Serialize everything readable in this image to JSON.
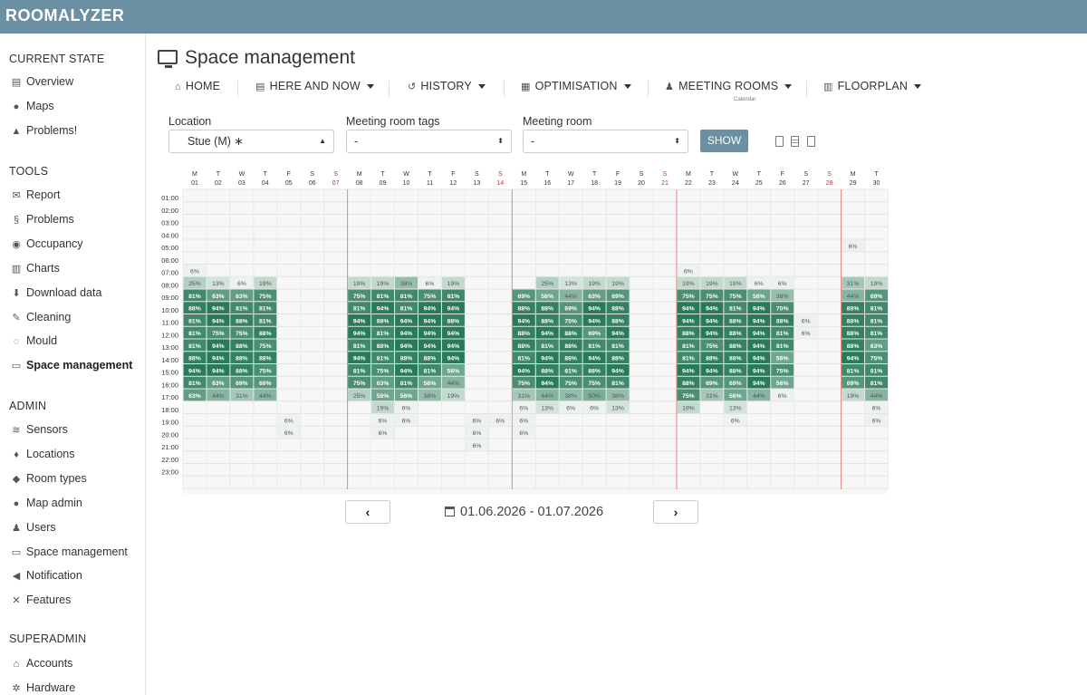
{
  "app": {
    "logo": "ROOMALYZER"
  },
  "sidebar": {
    "sections": [
      {
        "title": "CURRENT STATE",
        "items": [
          {
            "label": "Overview",
            "icon": "table-icon"
          },
          {
            "label": "Maps",
            "icon": "globe-icon"
          },
          {
            "label": "Problems!",
            "icon": "warning-icon"
          }
        ]
      },
      {
        "title": "TOOLS",
        "items": [
          {
            "label": "Report",
            "icon": "envelope-icon"
          },
          {
            "label": "Problems",
            "icon": "stethoscope-icon"
          },
          {
            "label": "Occupancy",
            "icon": "user-circle-icon"
          },
          {
            "label": "Charts",
            "icon": "bar-chart-icon"
          },
          {
            "label": "Download data",
            "icon": "download-icon"
          },
          {
            "label": "Cleaning",
            "icon": "brush-icon"
          },
          {
            "label": "Mould",
            "icon": "spinner-icon"
          },
          {
            "label": "Space management",
            "icon": "monitor-icon",
            "active": true
          }
        ]
      },
      {
        "title": "ADMIN",
        "items": [
          {
            "label": "Sensors",
            "icon": "rss-icon"
          },
          {
            "label": "Locations",
            "icon": "map-marker-icon"
          },
          {
            "label": "Room types",
            "icon": "tag-icon"
          },
          {
            "label": "Map admin",
            "icon": "globe-icon"
          },
          {
            "label": "Users",
            "icon": "users-icon"
          },
          {
            "label": "Space management",
            "icon": "monitor-icon"
          },
          {
            "label": "Notification",
            "icon": "bullhorn-icon"
          },
          {
            "label": "Features",
            "icon": "wrench-icon"
          }
        ]
      },
      {
        "title": "SUPERADMIN",
        "items": [
          {
            "label": "Accounts",
            "icon": "bank-icon"
          },
          {
            "label": "Hardware",
            "icon": "cogs-icon"
          }
        ]
      }
    ]
  },
  "page": {
    "title": "Space management",
    "title_icon": "monitor-icon"
  },
  "navbar": {
    "home": "HOME",
    "here_and_now": "HERE AND NOW",
    "history": "HISTORY",
    "optimisation": "OPTIMISATION",
    "meeting_rooms": "MEETING ROOMS",
    "meeting_rooms_sub": "Calendar",
    "floorplan": "FLOORPLAN"
  },
  "filters": {
    "location_label": "Location",
    "location_value": "Stue (M) ∗",
    "tags_label": "Meeting room tags",
    "tags_value": "-",
    "room_label": "Meeting room",
    "room_value": "-",
    "show_button": "SHOW"
  },
  "date_range": "01.06.2026 - 01.07.2026",
  "colors": {
    "header": "#6b8fa3",
    "weekend_day": "#d9262b",
    "heat_dark": "#2f7d5d",
    "heat_light": "#e9f0ec"
  },
  "chart_data": {
    "type": "heatmap",
    "days": [
      {
        "wd": "M",
        "d": "01"
      },
      {
        "wd": "T",
        "d": "02"
      },
      {
        "wd": "W",
        "d": "03"
      },
      {
        "wd": "T",
        "d": "04"
      },
      {
        "wd": "F",
        "d": "05"
      },
      {
        "wd": "S",
        "d": "06"
      },
      {
        "wd": "S",
        "d": "07",
        "sun": true
      },
      {
        "wd": "M",
        "d": "08"
      },
      {
        "wd": "T",
        "d": "09"
      },
      {
        "wd": "W",
        "d": "10"
      },
      {
        "wd": "T",
        "d": "11"
      },
      {
        "wd": "F",
        "d": "12"
      },
      {
        "wd": "S",
        "d": "13"
      },
      {
        "wd": "S",
        "d": "14",
        "sun": true
      },
      {
        "wd": "M",
        "d": "15"
      },
      {
        "wd": "T",
        "d": "16"
      },
      {
        "wd": "W",
        "d": "17"
      },
      {
        "wd": "T",
        "d": "18"
      },
      {
        "wd": "F",
        "d": "19"
      },
      {
        "wd": "S",
        "d": "20"
      },
      {
        "wd": "S",
        "d": "21",
        "sun": true
      },
      {
        "wd": "M",
        "d": "22"
      },
      {
        "wd": "T",
        "d": "23"
      },
      {
        "wd": "W",
        "d": "24"
      },
      {
        "wd": "T",
        "d": "25"
      },
      {
        "wd": "F",
        "d": "26"
      },
      {
        "wd": "S",
        "d": "27"
      },
      {
        "wd": "S",
        "d": "28",
        "sun": true
      },
      {
        "wd": "M",
        "d": "29"
      },
      {
        "wd": "T",
        "d": "30"
      }
    ],
    "hours": [
      "01:00",
      "02:00",
      "03:00",
      "04:00",
      "05:00",
      "06:00",
      "07:00",
      "08:00",
      "09:00",
      "10:00",
      "11:00",
      "12:00",
      "13:00",
      "14:00",
      "15:00",
      "16:00",
      "17:00",
      "18:00",
      "19:00",
      "20:00",
      "21:00",
      "22:00",
      "23:00"
    ],
    "cells": [
      [
        5,
        29,
        6
      ],
      [
        7,
        1,
        6
      ],
      [
        7,
        22,
        6
      ],
      [
        8,
        1,
        25
      ],
      [
        8,
        2,
        13
      ],
      [
        8,
        3,
        6
      ],
      [
        8,
        4,
        19
      ],
      [
        8,
        8,
        19
      ],
      [
        8,
        9,
        19
      ],
      [
        8,
        10,
        38
      ],
      [
        8,
        11,
        6
      ],
      [
        8,
        12,
        19
      ],
      [
        8,
        16,
        25
      ],
      [
        8,
        17,
        13
      ],
      [
        8,
        18,
        19
      ],
      [
        8,
        19,
        19
      ],
      [
        8,
        22,
        19
      ],
      [
        8,
        23,
        19
      ],
      [
        8,
        24,
        19
      ],
      [
        8,
        25,
        6
      ],
      [
        8,
        26,
        6
      ],
      [
        8,
        29,
        31
      ],
      [
        8,
        30,
        19
      ],
      [
        9,
        1,
        81
      ],
      [
        9,
        2,
        63
      ],
      [
        9,
        3,
        63
      ],
      [
        9,
        4,
        75
      ],
      [
        9,
        8,
        75
      ],
      [
        9,
        9,
        81
      ],
      [
        9,
        10,
        81
      ],
      [
        9,
        11,
        75
      ],
      [
        9,
        12,
        81
      ],
      [
        9,
        15,
        69
      ],
      [
        9,
        16,
        56
      ],
      [
        9,
        17,
        44
      ],
      [
        9,
        18,
        63
      ],
      [
        9,
        19,
        69
      ],
      [
        9,
        22,
        75
      ],
      [
        9,
        23,
        75
      ],
      [
        9,
        24,
        75
      ],
      [
        9,
        25,
        56
      ],
      [
        9,
        26,
        38
      ],
      [
        9,
        29,
        44
      ],
      [
        9,
        30,
        69
      ],
      [
        10,
        1,
        88
      ],
      [
        10,
        2,
        94
      ],
      [
        10,
        3,
        81
      ],
      [
        10,
        4,
        81
      ],
      [
        10,
        8,
        81
      ],
      [
        10,
        9,
        94
      ],
      [
        10,
        10,
        81
      ],
      [
        10,
        11,
        94
      ],
      [
        10,
        12,
        94
      ],
      [
        10,
        15,
        88
      ],
      [
        10,
        16,
        88
      ],
      [
        10,
        17,
        69
      ],
      [
        10,
        18,
        94
      ],
      [
        10,
        19,
        88
      ],
      [
        10,
        22,
        94
      ],
      [
        10,
        23,
        94
      ],
      [
        10,
        24,
        81
      ],
      [
        10,
        25,
        94
      ],
      [
        10,
        26,
        75
      ],
      [
        10,
        29,
        88
      ],
      [
        10,
        30,
        81
      ],
      [
        11,
        1,
        81
      ],
      [
        11,
        2,
        94
      ],
      [
        11,
        3,
        88
      ],
      [
        11,
        4,
        81
      ],
      [
        11,
        8,
        94
      ],
      [
        11,
        9,
        88
      ],
      [
        11,
        10,
        94
      ],
      [
        11,
        11,
        94
      ],
      [
        11,
        12,
        88
      ],
      [
        11,
        15,
        94
      ],
      [
        11,
        16,
        88
      ],
      [
        11,
        17,
        75
      ],
      [
        11,
        18,
        94
      ],
      [
        11,
        19,
        88
      ],
      [
        11,
        22,
        94
      ],
      [
        11,
        23,
        94
      ],
      [
        11,
        24,
        88
      ],
      [
        11,
        25,
        94
      ],
      [
        11,
        26,
        88
      ],
      [
        11,
        27,
        6
      ],
      [
        11,
        29,
        88
      ],
      [
        11,
        30,
        81
      ],
      [
        12,
        1,
        81
      ],
      [
        12,
        2,
        75
      ],
      [
        12,
        3,
        75
      ],
      [
        12,
        4,
        88
      ],
      [
        12,
        8,
        94
      ],
      [
        12,
        9,
        81
      ],
      [
        12,
        10,
        94
      ],
      [
        12,
        11,
        94
      ],
      [
        12,
        12,
        94
      ],
      [
        12,
        15,
        88
      ],
      [
        12,
        16,
        94
      ],
      [
        12,
        17,
        88
      ],
      [
        12,
        18,
        69
      ],
      [
        12,
        19,
        94
      ],
      [
        12,
        22,
        88
      ],
      [
        12,
        23,
        94
      ],
      [
        12,
        24,
        88
      ],
      [
        12,
        25,
        94
      ],
      [
        12,
        26,
        81
      ],
      [
        12,
        27,
        6
      ],
      [
        12,
        29,
        88
      ],
      [
        12,
        30,
        81
      ],
      [
        13,
        1,
        81
      ],
      [
        13,
        2,
        94
      ],
      [
        13,
        3,
        88
      ],
      [
        13,
        4,
        75
      ],
      [
        13,
        8,
        81
      ],
      [
        13,
        9,
        88
      ],
      [
        13,
        10,
        94
      ],
      [
        13,
        11,
        94
      ],
      [
        13,
        12,
        94
      ],
      [
        13,
        15,
        88
      ],
      [
        13,
        16,
        81
      ],
      [
        13,
        17,
        88
      ],
      [
        13,
        18,
        81
      ],
      [
        13,
        19,
        81
      ],
      [
        13,
        22,
        81
      ],
      [
        13,
        23,
        75
      ],
      [
        13,
        24,
        88
      ],
      [
        13,
        25,
        94
      ],
      [
        13,
        26,
        81
      ],
      [
        13,
        29,
        88
      ],
      [
        13,
        30,
        63
      ],
      [
        14,
        1,
        88
      ],
      [
        14,
        2,
        94
      ],
      [
        14,
        3,
        88
      ],
      [
        14,
        4,
        88
      ],
      [
        14,
        8,
        94
      ],
      [
        14,
        9,
        81
      ],
      [
        14,
        10,
        88
      ],
      [
        14,
        11,
        88
      ],
      [
        14,
        12,
        94
      ],
      [
        14,
        15,
        81
      ],
      [
        14,
        16,
        94
      ],
      [
        14,
        17,
        88
      ],
      [
        14,
        18,
        94
      ],
      [
        14,
        19,
        88
      ],
      [
        14,
        22,
        81
      ],
      [
        14,
        23,
        88
      ],
      [
        14,
        24,
        88
      ],
      [
        14,
        25,
        94
      ],
      [
        14,
        26,
        56
      ],
      [
        14,
        29,
        94
      ],
      [
        14,
        30,
        75
      ],
      [
        15,
        1,
        94
      ],
      [
        15,
        2,
        94
      ],
      [
        15,
        3,
        88
      ],
      [
        15,
        4,
        75
      ],
      [
        15,
        8,
        81
      ],
      [
        15,
        9,
        75
      ],
      [
        15,
        10,
        94
      ],
      [
        15,
        11,
        81
      ],
      [
        15,
        12,
        56
      ],
      [
        15,
        15,
        94
      ],
      [
        15,
        16,
        88
      ],
      [
        15,
        17,
        81
      ],
      [
        15,
        18,
        88
      ],
      [
        15,
        19,
        94
      ],
      [
        15,
        22,
        94
      ],
      [
        15,
        23,
        94
      ],
      [
        15,
        24,
        88
      ],
      [
        15,
        25,
        94
      ],
      [
        15,
        26,
        75
      ],
      [
        15,
        29,
        81
      ],
      [
        15,
        30,
        81
      ],
      [
        16,
        1,
        81
      ],
      [
        16,
        2,
        63
      ],
      [
        16,
        3,
        69
      ],
      [
        16,
        4,
        69
      ],
      [
        16,
        8,
        75
      ],
      [
        16,
        9,
        63
      ],
      [
        16,
        10,
        81
      ],
      [
        16,
        11,
        56
      ],
      [
        16,
        12,
        44
      ],
      [
        16,
        15,
        75
      ],
      [
        16,
        16,
        94
      ],
      [
        16,
        17,
        75
      ],
      [
        16,
        18,
        75
      ],
      [
        16,
        19,
        81
      ],
      [
        16,
        22,
        88
      ],
      [
        16,
        23,
        69
      ],
      [
        16,
        24,
        69
      ],
      [
        16,
        25,
        94
      ],
      [
        16,
        26,
        56
      ],
      [
        16,
        29,
        69
      ],
      [
        16,
        30,
        81
      ],
      [
        17,
        1,
        63
      ],
      [
        17,
        2,
        44
      ],
      [
        17,
        3,
        31
      ],
      [
        17,
        4,
        44
      ],
      [
        17,
        8,
        25
      ],
      [
        17,
        9,
        56
      ],
      [
        17,
        10,
        56
      ],
      [
        17,
        11,
        38
      ],
      [
        17,
        12,
        19
      ],
      [
        17,
        15,
        31
      ],
      [
        17,
        16,
        44
      ],
      [
        17,
        17,
        38
      ],
      [
        17,
        18,
        50
      ],
      [
        17,
        19,
        38
      ],
      [
        17,
        22,
        75
      ],
      [
        17,
        23,
        31
      ],
      [
        17,
        24,
        56
      ],
      [
        17,
        25,
        44
      ],
      [
        17,
        26,
        6
      ],
      [
        17,
        29,
        19
      ],
      [
        17,
        30,
        44
      ],
      [
        18,
        9,
        19
      ],
      [
        18,
        10,
        6
      ],
      [
        18,
        15,
        6
      ],
      [
        18,
        16,
        13
      ],
      [
        18,
        17,
        6
      ],
      [
        18,
        18,
        6
      ],
      [
        18,
        19,
        13
      ],
      [
        18,
        22,
        19
      ],
      [
        18,
        24,
        13
      ],
      [
        18,
        30,
        6
      ],
      [
        19,
        5,
        6
      ],
      [
        19,
        9,
        6
      ],
      [
        19,
        10,
        6
      ],
      [
        19,
        13,
        6
      ],
      [
        19,
        14,
        6
      ],
      [
        19,
        15,
        6
      ],
      [
        19,
        24,
        6
      ],
      [
        19,
        30,
        6
      ],
      [
        20,
        5,
        6
      ],
      [
        20,
        9,
        6
      ],
      [
        20,
        13,
        6
      ],
      [
        20,
        15,
        6
      ],
      [
        21,
        13,
        6
      ]
    ]
  }
}
